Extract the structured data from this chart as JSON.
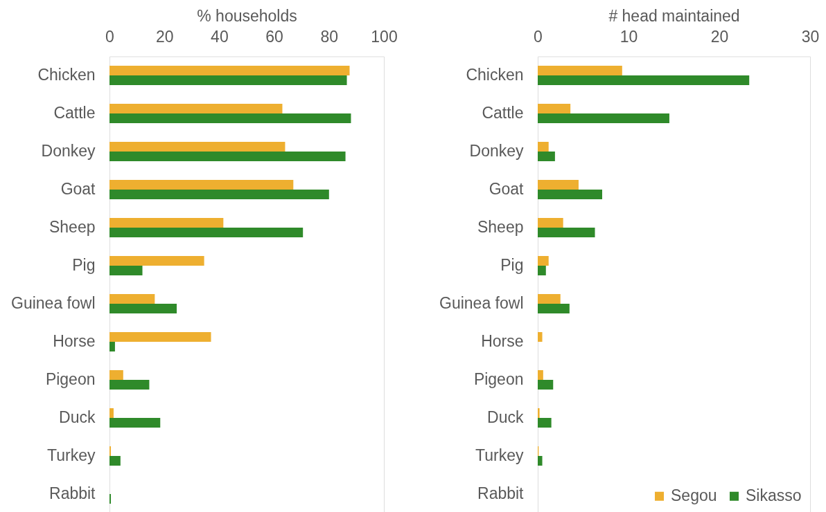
{
  "chart_data": [
    {
      "type": "bar",
      "orientation": "horizontal",
      "xlabel": "% households",
      "categories": [
        "Chicken",
        "Cattle",
        "Donkey",
        "Goat",
        "Sheep",
        "Pig",
        "Guinea fowl",
        "Horse",
        "Pigeon",
        "Duck",
        "Turkey",
        "Rabbit"
      ],
      "series": [
        {
          "color": "#eeaf30",
          "values": [
            87.5,
            63,
            64,
            67,
            41.5,
            34.5,
            16.5,
            37,
            5,
            1.5,
            0.5,
            0
          ]
        },
        {
          "color": "#2f8a2a",
          "values": [
            86.5,
            88,
            86,
            80,
            70.5,
            12,
            24.5,
            2,
            14.5,
            18.5,
            4,
            0.5
          ]
        }
      ],
      "xlim": [
        0,
        100
      ],
      "xticks": [
        0,
        20,
        40,
        60,
        80,
        100
      ]
    },
    {
      "type": "bar",
      "orientation": "horizontal",
      "xlabel": "# head maintained",
      "categories": [
        "Chicken",
        "Cattle",
        "Donkey",
        "Goat",
        "Sheep",
        "Pig",
        "Guinea fowl",
        "Horse",
        "Pigeon",
        "Duck",
        "Turkey",
        "Rabbit"
      ],
      "series": [
        {
          "name": "Segou",
          "color": "#eeaf30",
          "values": [
            9.3,
            3.6,
            1.2,
            4.5,
            2.8,
            1.2,
            2.5,
            0.5,
            0.6,
            0.2,
            0.1,
            0
          ]
        },
        {
          "name": "Sikasso",
          "color": "#2f8a2a",
          "values": [
            23.3,
            14.5,
            1.9,
            7.1,
            6.3,
            0.9,
            3.5,
            0,
            1.7,
            1.5,
            0.5,
            0
          ]
        }
      ],
      "xlim": [
        0,
        30
      ],
      "xticks": [
        0,
        10,
        20,
        30
      ],
      "legend": "bottom right"
    }
  ]
}
